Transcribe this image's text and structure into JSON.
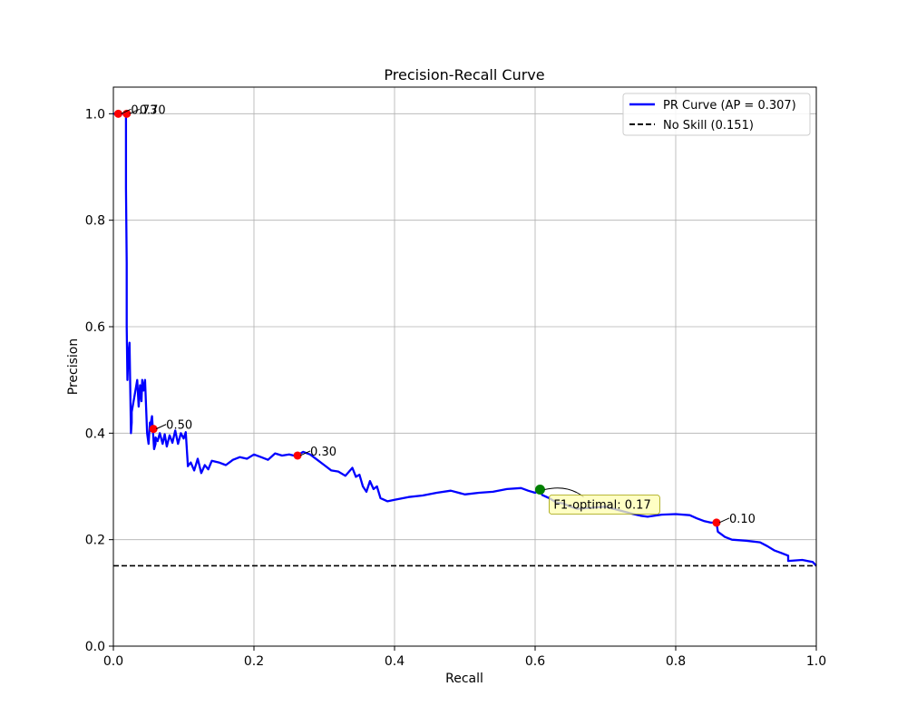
{
  "chart_data": {
    "type": "line",
    "title": "Precision-Recall Curve",
    "xlabel": "Recall",
    "ylabel": "Precision",
    "xlim": [
      0.0,
      1.0
    ],
    "ylim": [
      0.0,
      1.05
    ],
    "xticks": [
      "0.0",
      "0.2",
      "0.4",
      "0.6",
      "0.8",
      "1.0"
    ],
    "yticks": [
      "0.0",
      "0.2",
      "0.4",
      "0.6",
      "0.8",
      "1.0"
    ],
    "grid": true,
    "legend_position": "top-right",
    "series": [
      {
        "name": "PR Curve (AP = 0.307)",
        "color": "#0000ff",
        "style": "solid",
        "x": [
          0.0,
          0.018,
          0.018,
          0.019,
          0.019,
          0.02,
          0.021,
          0.023,
          0.025,
          0.026,
          0.026,
          0.03,
          0.034,
          0.036,
          0.038,
          0.04,
          0.041,
          0.043,
          0.045,
          0.048,
          0.05,
          0.052,
          0.052,
          0.055,
          0.058,
          0.06,
          0.06,
          0.063,
          0.066,
          0.07,
          0.073,
          0.076,
          0.08,
          0.084,
          0.088,
          0.092,
          0.096,
          0.1,
          0.103,
          0.106,
          0.106,
          0.11,
          0.115,
          0.12,
          0.125,
          0.13,
          0.135,
          0.14,
          0.15,
          0.16,
          0.17,
          0.18,
          0.19,
          0.2,
          0.21,
          0.22,
          0.23,
          0.24,
          0.25,
          0.26,
          0.27,
          0.28,
          0.29,
          0.3,
          0.31,
          0.32,
          0.33,
          0.34,
          0.345,
          0.35,
          0.355,
          0.36,
          0.365,
          0.37,
          0.375,
          0.38,
          0.39,
          0.4,
          0.42,
          0.44,
          0.46,
          0.48,
          0.5,
          0.52,
          0.54,
          0.56,
          0.58,
          0.59,
          0.6,
          0.607,
          0.61,
          0.62,
          0.63,
          0.64,
          0.65,
          0.66,
          0.68,
          0.7,
          0.72,
          0.74,
          0.75,
          0.76,
          0.78,
          0.8,
          0.82,
          0.83,
          0.84,
          0.85,
          0.858,
          0.86,
          0.87,
          0.88,
          0.9,
          0.92,
          0.93,
          0.94,
          0.95,
          0.96,
          0.96,
          0.98,
          0.995,
          1.0
        ],
        "y": [
          1.0,
          1.0,
          0.86,
          0.72,
          0.6,
          0.5,
          0.54,
          0.57,
          0.4,
          0.42,
          0.44,
          0.47,
          0.5,
          0.45,
          0.49,
          0.46,
          0.5,
          0.48,
          0.5,
          0.4,
          0.38,
          0.42,
          0.41,
          0.432,
          0.37,
          0.38,
          0.392,
          0.385,
          0.4,
          0.38,
          0.398,
          0.375,
          0.396,
          0.382,
          0.405,
          0.38,
          0.4,
          0.39,
          0.402,
          0.34,
          0.338,
          0.345,
          0.33,
          0.352,
          0.325,
          0.34,
          0.332,
          0.348,
          0.345,
          0.34,
          0.35,
          0.355,
          0.352,
          0.36,
          0.355,
          0.35,
          0.362,
          0.358,
          0.36,
          0.357,
          0.365,
          0.36,
          0.35,
          0.34,
          0.33,
          0.328,
          0.32,
          0.335,
          0.318,
          0.322,
          0.3,
          0.29,
          0.31,
          0.295,
          0.3,
          0.278,
          0.272,
          0.275,
          0.28,
          0.283,
          0.288,
          0.292,
          0.285,
          0.288,
          0.29,
          0.295,
          0.297,
          0.292,
          0.288,
          0.294,
          0.284,
          0.278,
          0.27,
          0.268,
          0.262,
          0.258,
          0.26,
          0.262,
          0.255,
          0.248,
          0.245,
          0.243,
          0.247,
          0.248,
          0.246,
          0.24,
          0.235,
          0.232,
          0.232,
          0.215,
          0.205,
          0.2,
          0.198,
          0.195,
          0.188,
          0.18,
          0.175,
          0.17,
          0.16,
          0.162,
          0.158,
          0.151
        ]
      },
      {
        "name": "No Skill (0.151)",
        "color": "#000000",
        "style": "dashed",
        "x": [
          0.0,
          1.0
        ],
        "y": [
          0.151,
          0.151
        ]
      }
    ],
    "threshold_points": [
      {
        "label": "0.73",
        "x": 0.007,
        "y": 1.0
      },
      {
        "label": "0.70",
        "x": 0.019,
        "y": 1.0
      },
      {
        "label": "0.50",
        "x": 0.057,
        "y": 0.408
      },
      {
        "label": "0.30",
        "x": 0.262,
        "y": 0.358
      },
      {
        "label": "0.10",
        "x": 0.858,
        "y": 0.232
      }
    ],
    "optimal_point": {
      "label": "F1-optimal: 0.17",
      "x": 0.607,
      "y": 0.294,
      "color": "#008000"
    },
    "point_color": "#ff0000",
    "annotation_box_color": "#ffffb0"
  }
}
